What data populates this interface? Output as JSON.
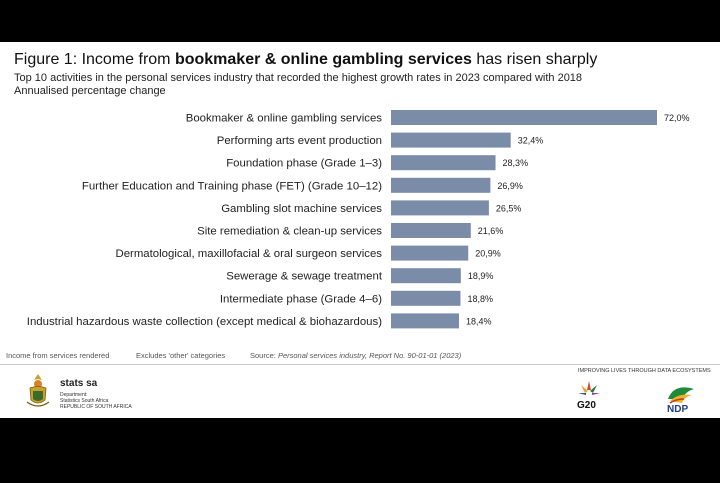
{
  "header": {
    "title_prefix": "Figure 1: Income from ",
    "title_bold": "bookmaker & online gambling services",
    "title_suffix": " has risen sharply",
    "subtitle": "Top 10 activities in the personal services industry that recorded the highest growth rates in 2023 compared with 2018",
    "subtitle2": "Annualised percentage change"
  },
  "footer": {
    "note1": "Income from services rendered",
    "note2": "Excludes 'other' categories",
    "source_prefix": "Source: ",
    "source_italic": "Personal services industry, Report No. 90-01-01 (2023)",
    "org_name": "stats sa",
    "org_dept_1": "Department:",
    "org_dept_2": "Statistics South Africa",
    "org_dept_3": "REPUBLIC OF SOUTH AFRICA",
    "tagline": "IMPROVING LIVES THROUGH DATA ECOSYSTEMS",
    "g20_label": "G20",
    "ndp_label": "NDP"
  },
  "colors": {
    "bar": "#7b8ca8",
    "text": "#222222"
  },
  "chart_data": {
    "type": "bar",
    "orientation": "horizontal",
    "categories": [
      "Bookmaker & online gambling services",
      "Performing arts event production",
      "Foundation phase (Grade 1–3)",
      "Further Education and Training phase (FET) (Grade 10–12)",
      "Gambling slot machine services",
      "Site remediation & clean-up services",
      "Dermatological, maxillofacial & oral surgeon services",
      "Sewerage & sewage treatment",
      "Intermediate phase (Grade 4–6)",
      "Industrial hazardous waste collection (except medical & biohazardous)"
    ],
    "values": [
      72.0,
      32.4,
      28.3,
      26.9,
      26.5,
      21.6,
      20.9,
      18.9,
      18.8,
      18.4
    ],
    "value_labels": [
      "72,0%",
      "32,4%",
      "28,3%",
      "26,9%",
      "26,5%",
      "21,6%",
      "20,9%",
      "18,9%",
      "18,8%",
      "18,4%"
    ],
    "xlim": [
      0,
      72.0
    ],
    "grid": false,
    "legend": "none"
  }
}
